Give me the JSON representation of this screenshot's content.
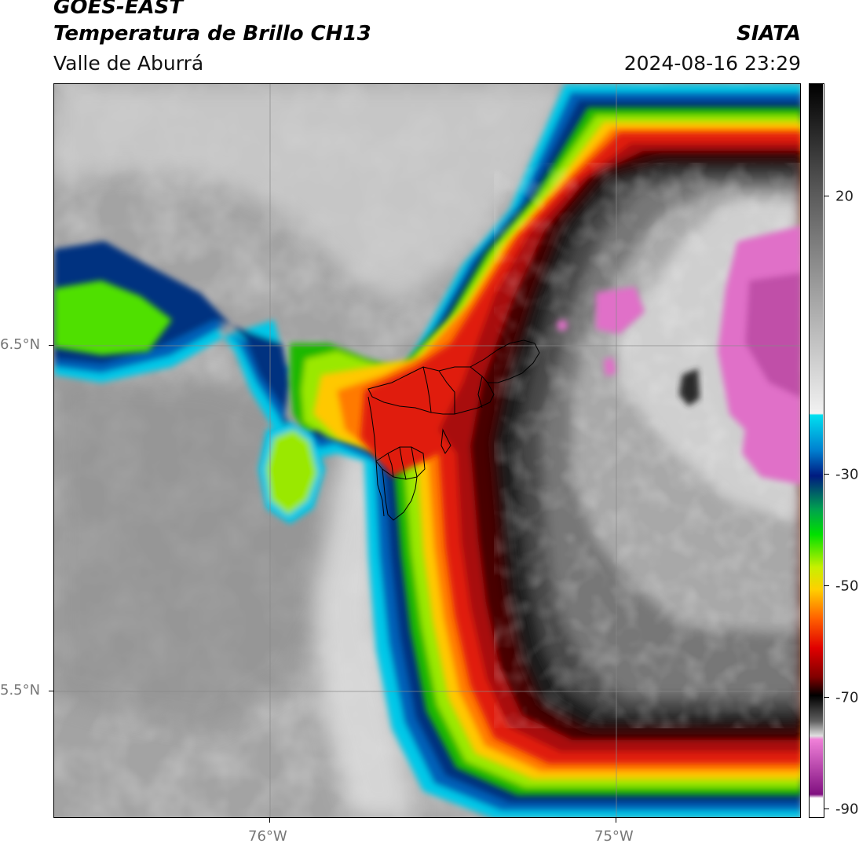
{
  "header": {
    "satellite": "GOES-EAST",
    "product": "Temperatura de Brillo CH13",
    "organization": "SIATA",
    "region": "Valle de Aburrá",
    "timestamp": "2024-08-16 23:29"
  },
  "axes": {
    "lat_labels": [
      "6.5°N",
      "5.5°N"
    ],
    "lon_labels": [
      "76°W",
      "75°W"
    ]
  },
  "colorbar": {
    "tick_labels": [
      "20",
      "-30",
      "-50",
      "-70",
      "-90"
    ]
  },
  "colors": {
    "clear_sky_gray": "#9a9a9a",
    "cold_cloud_magenta": "#e070c8",
    "red": "#e01a0a",
    "green": "#2ee000",
    "blue": "#003080",
    "cyan": "#00c8e8"
  }
}
